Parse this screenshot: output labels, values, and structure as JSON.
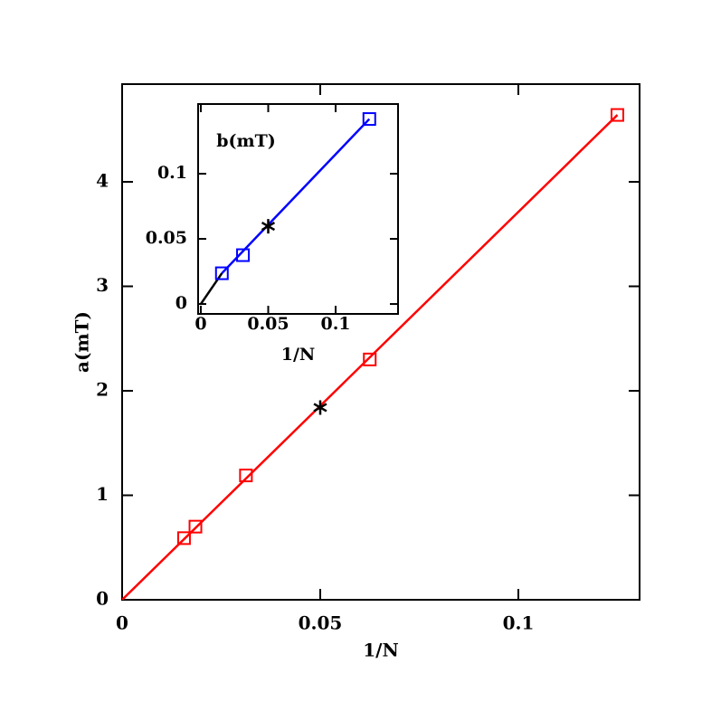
{
  "chart_data": [
    {
      "type": "scatter",
      "xlabel": "1/N",
      "ylabel": "a(mT)",
      "xlim": [
        0,
        0.1306
      ],
      "ylim": [
        0,
        4.935
      ],
      "xticks": [
        0,
        0.05,
        0.1
      ],
      "yticks": [
        0,
        1,
        2,
        3,
        4
      ],
      "series": [
        {
          "color": "#ff0000",
          "marker": "square",
          "x": [
            0.015625,
            0.0185,
            0.03125,
            0.0625,
            0.125
          ],
          "values": [
            0.59,
            0.7,
            1.19,
            2.3,
            4.64
          ]
        },
        {
          "color": "#000000",
          "marker": "star",
          "x": [
            0.05
          ],
          "values": [
            1.84
          ]
        }
      ],
      "lines": [
        {
          "color": "#ff0000",
          "x": [
            0,
            0.125
          ],
          "values": [
            0,
            4.64
          ]
        }
      ]
    },
    {
      "type": "scatter",
      "xlabel": "1/N",
      "annotation": "b(mT)",
      "xlim": [
        -0.002,
        0.1463
      ],
      "ylim": [
        -0.0076,
        0.1535
      ],
      "xticks": [
        0,
        0.05,
        0.1
      ],
      "yticks": [
        0,
        0.05,
        0.1
      ],
      "series": [
        {
          "color": "#0000ff",
          "marker": "square",
          "x": [
            0.015625,
            0.03125,
            0.125
          ],
          "values": [
            0.0236,
            0.0375,
            0.142
          ]
        },
        {
          "color": "#000000",
          "marker": "star",
          "x": [
            0.05
          ],
          "values": [
            0.0597
          ]
        }
      ],
      "lines": [
        {
          "color": "#000000",
          "x": [
            0,
            0.015625
          ],
          "values": [
            0,
            0.0236
          ]
        },
        {
          "color": "#0000ff",
          "x": [
            0.015625,
            0.125
          ],
          "values": [
            0.0236,
            0.142
          ]
        }
      ]
    }
  ]
}
